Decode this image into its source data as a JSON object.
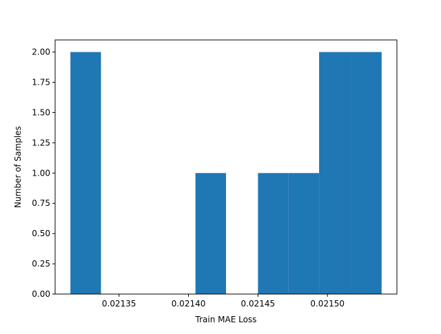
{
  "chart_data": {
    "type": "bar",
    "title": "",
    "xlabel": "Train MAE Loss",
    "ylabel": "Number of Samples",
    "bins": [
      {
        "x0": 0.021315,
        "x1": 0.021337,
        "count": 2
      },
      {
        "x0": 0.021337,
        "x1": 0.02136,
        "count": 0
      },
      {
        "x0": 0.02136,
        "x1": 0.021382,
        "count": 0
      },
      {
        "x0": 0.021382,
        "x1": 0.021405,
        "count": 0
      },
      {
        "x0": 0.021405,
        "x1": 0.021427,
        "count": 1
      },
      {
        "x0": 0.021427,
        "x1": 0.02145,
        "count": 0
      },
      {
        "x0": 0.02145,
        "x1": 0.021472,
        "count": 1
      },
      {
        "x0": 0.021472,
        "x1": 0.021494,
        "count": 1
      },
      {
        "x0": 0.021494,
        "x1": 0.021517,
        "count": 2
      },
      {
        "x0": 0.021517,
        "x1": 0.021539,
        "count": 2
      }
    ],
    "xlim": [
      0.021304,
      0.02155
    ],
    "ylim": [
      0,
      2.1
    ],
    "x_ticks": [
      0.02135,
      0.0214,
      0.02145,
      0.0215
    ],
    "x_tick_labels": [
      "0.02135",
      "0.02140",
      "0.02145",
      "0.02150"
    ],
    "y_ticks": [
      0,
      0.25,
      0.5,
      0.75,
      1.0,
      1.25,
      1.5,
      1.75,
      2.0
    ],
    "y_tick_labels": [
      "0.00",
      "0.25",
      "0.50",
      "0.75",
      "1.00",
      "1.25",
      "1.50",
      "1.75",
      "2.00"
    ],
    "bar_color": "#1f77b4",
    "grid": false,
    "legend": "none"
  }
}
